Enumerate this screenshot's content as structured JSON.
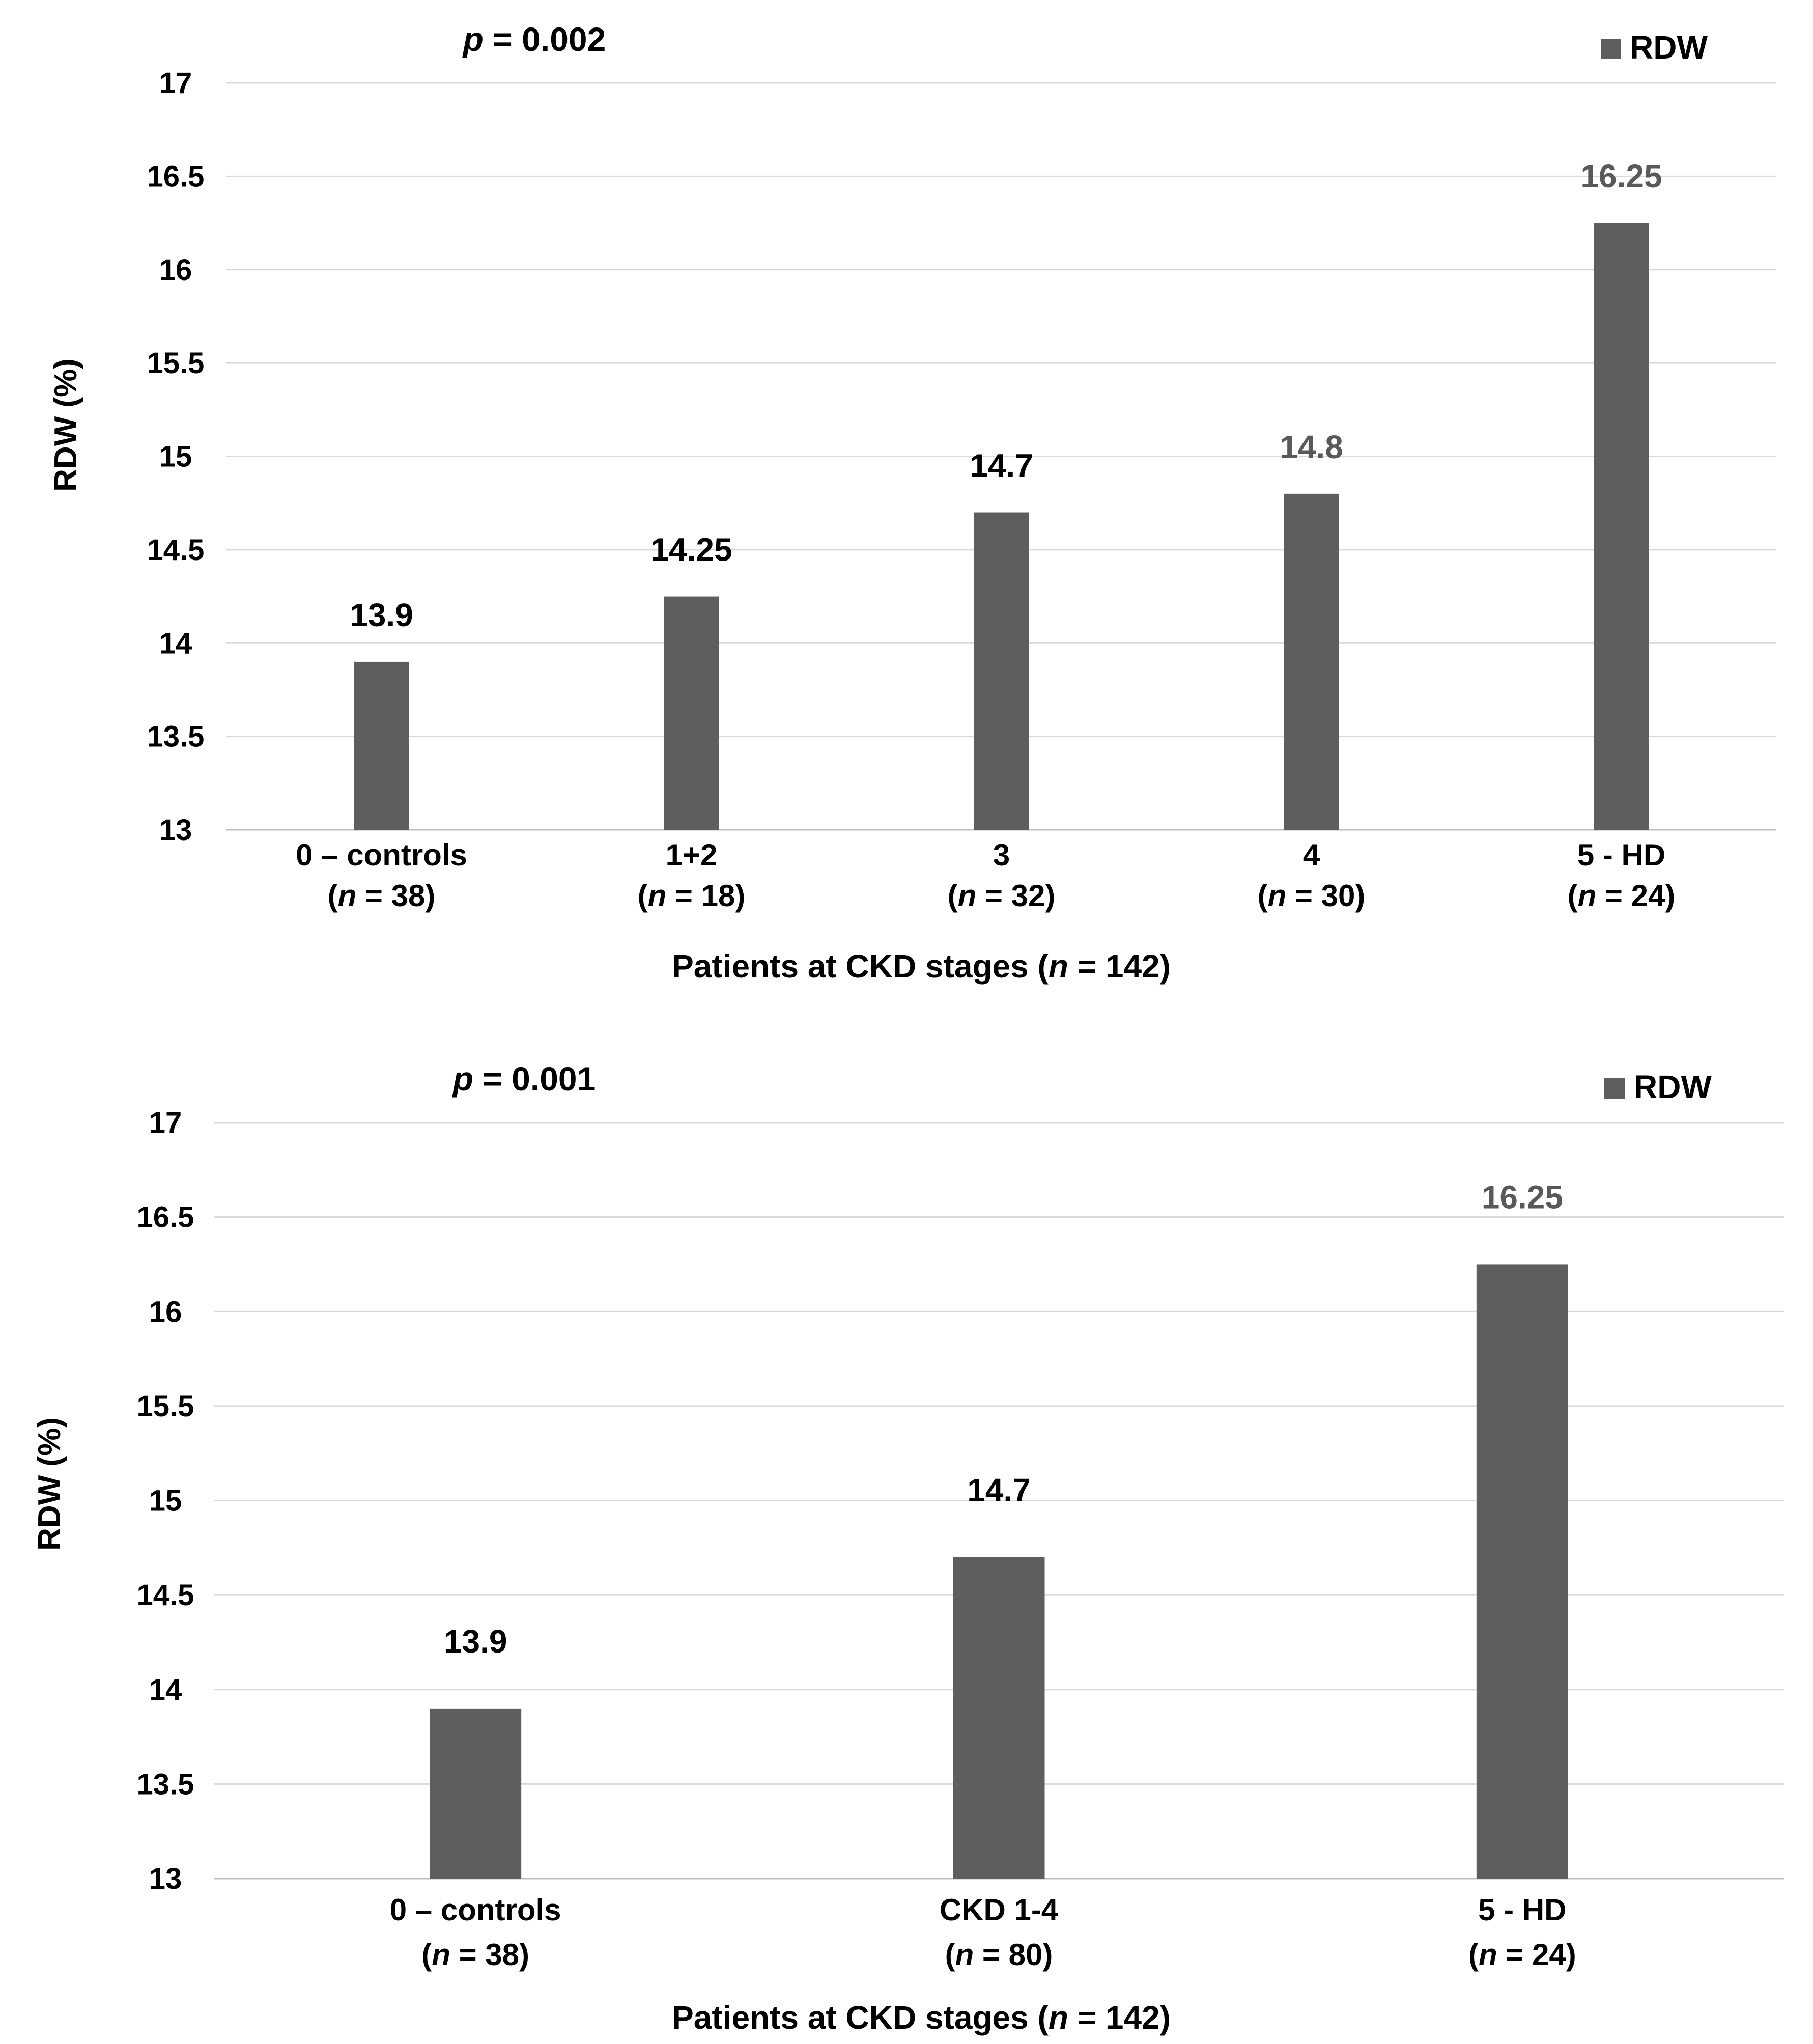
{
  "chart_data": [
    {
      "type": "bar",
      "title": "",
      "annotation": {
        "p_symbol": "p",
        "p_rest": " = 0.002"
      },
      "ylabel": "RDW (%)",
      "xlabel_parts": [
        "Patients at CKD stages (",
        "n",
        " = 142)"
      ],
      "ylim": [
        13,
        17
      ],
      "yticks": [
        "13",
        "13.5",
        "14",
        "14.5",
        "15",
        "15.5",
        "16",
        "16.5",
        "17"
      ],
      "categories": [
        {
          "line1": "0 – controls",
          "n": "38"
        },
        {
          "line1": "1+2",
          "n": "18"
        },
        {
          "line1": "3",
          "n": "32"
        },
        {
          "line1": "4",
          "n": "30"
        },
        {
          "line1": "5 - HD",
          "n": "24"
        }
      ],
      "series": [
        {
          "name": "RDW",
          "values": [
            13.9,
            14.25,
            14.7,
            14.8,
            16.25
          ]
        }
      ],
      "value_labels": [
        "13.9",
        "14.25",
        "14.7",
        "14.8",
        "16.25"
      ],
      "legend": "top-right",
      "grid": true
    },
    {
      "type": "bar",
      "title": "",
      "annotation": {
        "p_symbol": "p",
        "p_rest": " = 0.001"
      },
      "ylabel": "RDW (%)",
      "xlabel_parts": [
        "Patients at CKD stages (",
        "n",
        " = 142)"
      ],
      "ylim": [
        13,
        17
      ],
      "yticks": [
        "13",
        "13.5",
        "14",
        "14.5",
        "15",
        "15.5",
        "16",
        "16.5",
        "17"
      ],
      "categories": [
        {
          "line1": "0 – controls",
          "n": "38"
        },
        {
          "line1": "CKD 1-4",
          "n": "80"
        },
        {
          "line1": "5 - HD",
          "n": "24"
        }
      ],
      "series": [
        {
          "name": "RDW",
          "values": [
            13.9,
            14.7,
            16.25
          ]
        }
      ],
      "value_labels": [
        "13.9",
        "14.7",
        "16.25"
      ],
      "legend": "top-right",
      "grid": true
    }
  ],
  "colors": {
    "bar": "#5e5e5e",
    "label_dark": "#000000",
    "label_grey": "#595959"
  }
}
